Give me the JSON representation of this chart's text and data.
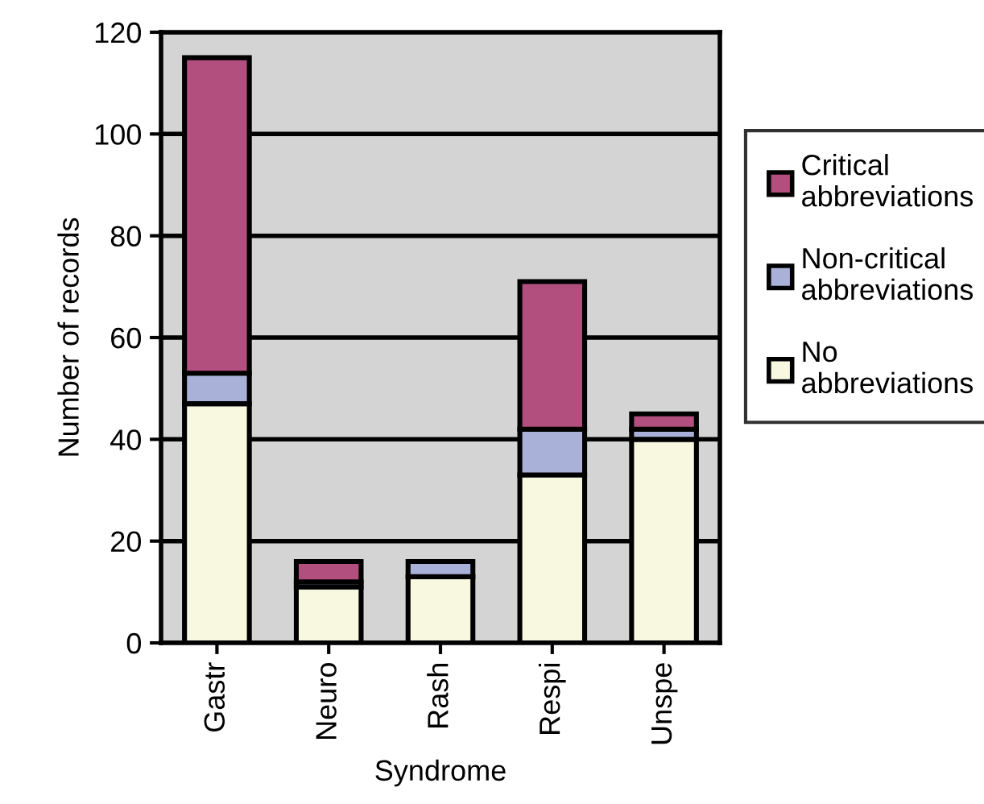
{
  "chart_data": {
    "type": "bar",
    "stacked": true,
    "xlabel": "Syndrome",
    "ylabel": "Number of records",
    "categories": [
      "Gastr",
      "Neuro",
      "Rash",
      "Respi",
      "Unspe"
    ],
    "series": [
      {
        "name": "No abbreviations",
        "color": "#f8f7e0",
        "values": [
          47,
          11,
          13,
          33,
          40
        ]
      },
      {
        "name": "Non-critical abbreviations",
        "color": "#a9b1d9",
        "values": [
          6,
          1,
          3,
          9,
          2
        ]
      },
      {
        "name": "Critical abbreviations",
        "color": "#b34f7e",
        "values": [
          62,
          4,
          null,
          29,
          3
        ]
      }
    ],
    "ylim": [
      0,
      120
    ],
    "yticks": [
      0,
      20,
      40,
      60,
      80,
      100,
      120
    ],
    "grid": "y",
    "legend": "right"
  }
}
